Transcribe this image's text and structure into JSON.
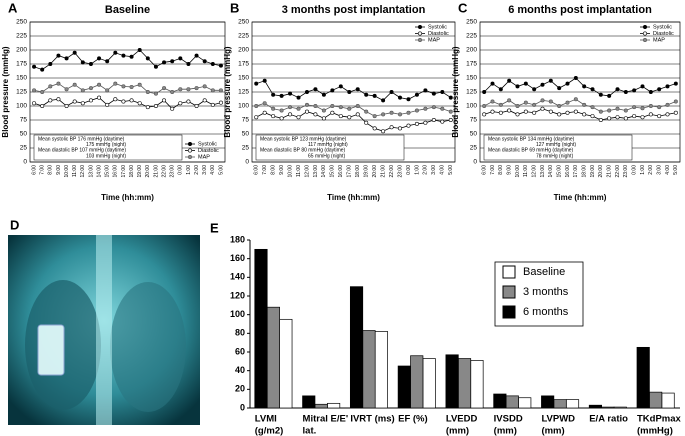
{
  "chart_data": [
    {
      "type": "line",
      "panel": "A",
      "title": "Baseline",
      "x_label": "Time (hh:mm)",
      "y_label": "Blood pressure (mmHg)",
      "categories": [
        "6:00",
        "7:00",
        "8:00",
        "9:00",
        "10:00",
        "11:00",
        "12:00",
        "13:00",
        "14:00",
        "15:00",
        "16:00",
        "17:00",
        "18:00",
        "19:00",
        "20:00",
        "21:00",
        "22:00",
        "23:00",
        "0:00",
        "1:00",
        "2:00",
        "3:00",
        "4:00",
        "5:00"
      ],
      "ylim": [
        0,
        250
      ],
      "yticks": [
        0,
        25,
        50,
        75,
        100,
        125,
        150,
        175,
        200,
        225,
        250
      ],
      "grid": true,
      "legend": "lower right",
      "annotations": [
        "Mean systolic  BP  176 mmHg (daytime)",
        "175 mmHg (night)",
        "Mean diastolic BP  107 mmHg (daytime)",
        "103 mmHg (night)"
      ],
      "series": [
        {
          "name": "Systolic",
          "color": "#000000",
          "marker_fill": "#000000",
          "values": [
            170,
            165,
            175,
            190,
            185,
            195,
            178,
            175,
            185,
            180,
            195,
            190,
            188,
            200,
            185,
            170,
            178,
            180,
            185,
            175,
            190,
            180,
            175,
            172
          ]
        },
        {
          "name": "Diastolic",
          "color": "#000000",
          "marker_fill": "#ffffff",
          "values": [
            105,
            100,
            110,
            112,
            100,
            108,
            105,
            110,
            115,
            102,
            112,
            108,
            110,
            105,
            98,
            100,
            110,
            95,
            105,
            108,
            100,
            110,
            102,
            106
          ]
        },
        {
          "name": "MAP",
          "color": "#555555",
          "marker_fill": "#888888",
          "values": [
            128,
            125,
            135,
            140,
            130,
            138,
            128,
            132,
            138,
            128,
            140,
            135,
            134,
            138,
            125,
            122,
            132,
            125,
            130,
            130,
            132,
            135,
            128,
            128
          ]
        }
      ]
    },
    {
      "type": "line",
      "panel": "B",
      "title": "3 months post implantation",
      "x_label": "Time (hh:mm)",
      "y_label": "Blood pressure (mmHg)",
      "categories": [
        "6:00",
        "7:00",
        "8:00",
        "9:00",
        "10:00",
        "11:00",
        "12:00",
        "13:00",
        "14:00",
        "15:00",
        "16:00",
        "17:00",
        "18:00",
        "19:00",
        "20:00",
        "21:00",
        "22:00",
        "23:00",
        "0:00",
        "1:00",
        "2:00",
        "3:00",
        "4:00",
        "5:00"
      ],
      "ylim": [
        0,
        250
      ],
      "yticks": [
        0,
        25,
        50,
        75,
        100,
        125,
        150,
        175,
        200,
        225,
        250
      ],
      "grid": true,
      "legend": "upper right",
      "annotations": [
        "Mean systolic  BP  123 mmHg (daytime)",
        "117 mmHg (night)",
        "Mean diastolic BP  80 mmHg (daytime)",
        "65 mmHg (night)"
      ],
      "series": [
        {
          "name": "Systolic",
          "color": "#000000",
          "marker_fill": "#000000",
          "values": [
            140,
            145,
            120,
            118,
            122,
            115,
            125,
            130,
            120,
            128,
            135,
            125,
            130,
            120,
            118,
            110,
            125,
            115,
            112,
            120,
            128,
            122,
            125,
            115
          ]
        },
        {
          "name": "Diastolic",
          "color": "#000000",
          "marker_fill": "#ffffff",
          "values": [
            80,
            88,
            82,
            78,
            85,
            80,
            90,
            85,
            78,
            88,
            82,
            80,
            85,
            70,
            60,
            55,
            62,
            60,
            65,
            68,
            70,
            75,
            72,
            75
          ]
        },
        {
          "name": "MAP",
          "color": "#555555",
          "marker_fill": "#888888",
          "values": [
            100,
            105,
            95,
            92,
            98,
            95,
            102,
            100,
            92,
            100,
            98,
            95,
            100,
            90,
            82,
            85,
            88,
            85,
            88,
            92,
            95,
            98,
            95,
            90
          ]
        }
      ]
    },
    {
      "type": "line",
      "panel": "C",
      "title": "6 months post implantation",
      "x_label": "Time (hh:mm)",
      "y_label": "Blood pressure (mmHg)",
      "categories": [
        "6:00",
        "7:00",
        "8:00",
        "9:00",
        "10:00",
        "11:00",
        "12:00",
        "13:00",
        "14:00",
        "15:00",
        "16:00",
        "17:00",
        "18:00",
        "19:00",
        "20:00",
        "21:00",
        "22:00",
        "23:00",
        "0:00",
        "1:00",
        "2:00",
        "3:00",
        "4:00",
        "5:00"
      ],
      "ylim": [
        0,
        250
      ],
      "yticks": [
        0,
        25,
        50,
        75,
        100,
        125,
        150,
        175,
        200,
        225,
        250
      ],
      "grid": true,
      "legend": "upper right",
      "annotations": [
        "Mean systolic  BP  134 mmHg (daytime)",
        "127 mmHg (night)",
        "Mean diastolic BP  69 mmHg (daytime)",
        "78 mmHg (night)"
      ],
      "series": [
        {
          "name": "Systolic",
          "color": "#000000",
          "marker_fill": "#000000",
          "values": [
            125,
            140,
            130,
            145,
            135,
            140,
            130,
            138,
            145,
            132,
            140,
            150,
            135,
            130,
            120,
            118,
            130,
            125,
            128,
            135,
            125,
            130,
            135,
            140
          ]
        },
        {
          "name": "Diastolic",
          "color": "#000000",
          "marker_fill": "#ffffff",
          "values": [
            85,
            90,
            88,
            92,
            85,
            90,
            88,
            95,
            90,
            85,
            88,
            90,
            85,
            82,
            75,
            78,
            80,
            78,
            82,
            80,
            85,
            82,
            85,
            88
          ]
        },
        {
          "name": "MAP",
          "color": "#555555",
          "marker_fill": "#888888",
          "values": [
            100,
            108,
            102,
            110,
            100,
            106,
            102,
            110,
            108,
            100,
            106,
            112,
            102,
            98,
            90,
            92,
            95,
            92,
            98,
            96,
            100,
            98,
            102,
            108
          ]
        }
      ]
    },
    {
      "type": "image",
      "panel": "D"
    },
    {
      "type": "bar",
      "panel": "E",
      "ylim": [
        0,
        180
      ],
      "yticks": [
        0,
        20,
        40,
        60,
        80,
        100,
        120,
        140,
        160,
        180
      ],
      "legend": "upper right",
      "categories": [
        [
          "LVMI",
          "(g/m2)"
        ],
        [
          "Mitral E/E'",
          "lat."
        ],
        [
          "IVRT (ms)"
        ],
        [
          "EF (%)"
        ],
        [
          "LVEDD",
          "(mm)"
        ],
        [
          "IVSDD",
          "(mm)"
        ],
        [
          "LVPWD",
          "(mm)"
        ],
        [
          "E/A ratio"
        ],
        [
          "TKdPmax",
          "(mmHg)"
        ]
      ],
      "series": [
        {
          "name": "Baseline",
          "color": "#ffffff",
          "values": [
            95,
            5,
            82,
            53,
            51,
            11,
            9,
            1,
            16
          ]
        },
        {
          "name": "3 months",
          "color": "#888888",
          "values": [
            108,
            4,
            83,
            56,
            53,
            13,
            9,
            1,
            17
          ]
        },
        {
          "name": "6 months",
          "color": "#000000",
          "values": [
            170,
            13,
            130,
            45,
            57,
            15,
            13,
            3,
            65
          ]
        }
      ]
    }
  ]
}
